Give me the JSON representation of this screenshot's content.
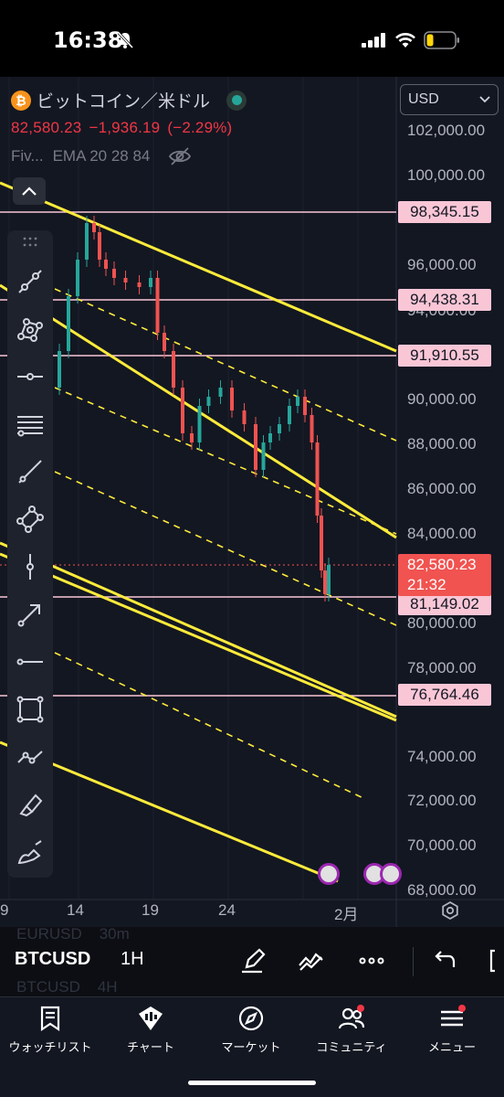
{
  "status_bar": {
    "time": "16:38"
  },
  "header": {
    "pair_name": "ビットコイン／米ドル",
    "last_price": "82,580.23",
    "change": "−1,936.19",
    "change_pct": "(−2.29%)",
    "indicators": [
      "Fiv...",
      "EMA 20 28 84"
    ],
    "currency": "USD"
  },
  "price_axis": {
    "labels": [
      "102,000.00",
      "100,000.00",
      "96,000.00",
      "94,000.00",
      "90,000.00",
      "88,000.00",
      "86,000.00",
      "84,000.00",
      "80,000.00",
      "78,000.00",
      "74,000.00",
      "72,000.00",
      "70,000.00",
      "68,000.00"
    ]
  },
  "horizontal_lines": [
    "98,345.15",
    "94,438.31",
    "91,910.55",
    "81,149.02",
    "76,764.46"
  ],
  "current_price": {
    "value": "82,580.23",
    "countdown": "21:32"
  },
  "time_axis": [
    "9",
    "14",
    "19",
    "24",
    "2月"
  ],
  "bottom_bar": {
    "symbol": "BTCUSD",
    "interval": "1H",
    "ghost_rows": [
      {
        "symbol": "EURUSD",
        "interval": "30m"
      },
      {
        "symbol": "BTCUSD",
        "interval": "4H"
      }
    ]
  },
  "tabs": [
    {
      "label": "ウォッチリスト",
      "icon": "watchlist-icon"
    },
    {
      "label": "チャート",
      "icon": "chart-icon"
    },
    {
      "label": "マーケット",
      "icon": "compass-icon"
    },
    {
      "label": "コミュニティ",
      "icon": "community-icon"
    },
    {
      "label": "メニュー",
      "icon": "menu-icon"
    }
  ],
  "colors": {
    "background": "#131722",
    "trendline": "#ffeb3b",
    "hline": "#f9c6d6",
    "up": "#26a69a",
    "down": "#ef5350",
    "accent_bitcoin": "#f7931a"
  }
}
